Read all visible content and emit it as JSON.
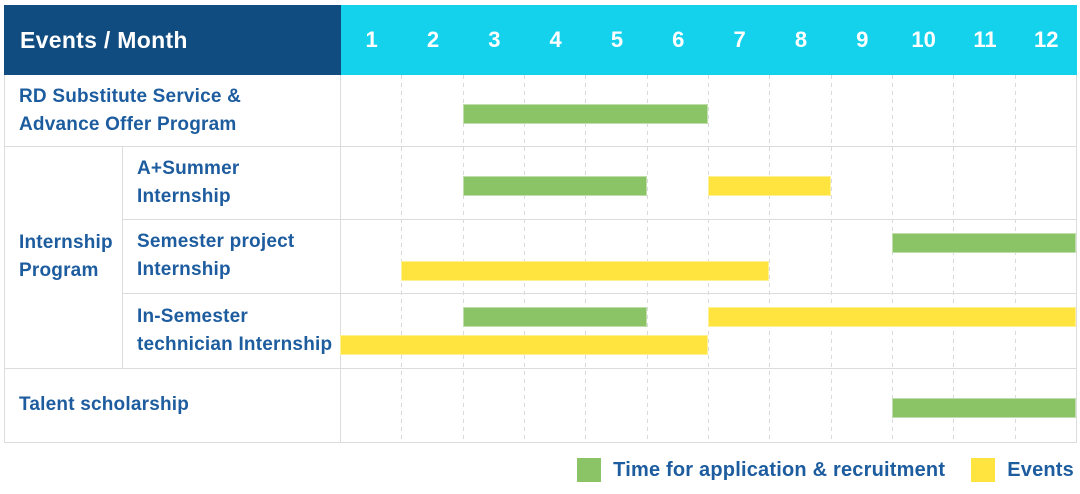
{
  "header": {
    "title": "Events / Month",
    "months": [
      "1",
      "2",
      "3",
      "4",
      "5",
      "6",
      "7",
      "8",
      "9",
      "10",
      "11",
      "12"
    ]
  },
  "chart_data": {
    "type": "gantt",
    "x_axis": {
      "unit": "month",
      "range": [
        1,
        12
      ],
      "ticks": [
        1,
        2,
        3,
        4,
        5,
        6,
        7,
        8,
        9,
        10,
        11,
        12
      ]
    },
    "group_label_lines": [
      "Internship",
      "Program"
    ],
    "rows": [
      {
        "group": "",
        "label_lines": [
          "RD Substitute Service &",
          "Advance Offer Program"
        ],
        "bars": [
          {
            "kind": "application",
            "start": 3,
            "end": 6,
            "line": 0
          }
        ]
      },
      {
        "group": "Internship Program",
        "label_lines": [
          "A+Summer",
          "Internship"
        ],
        "bars": [
          {
            "kind": "application",
            "start": 3,
            "end": 5,
            "line": 0
          },
          {
            "kind": "event",
            "start": 7,
            "end": 8,
            "line": 0
          }
        ]
      },
      {
        "group": "Internship Program",
        "label_lines": [
          "Semester project",
          "Internship"
        ],
        "bars": [
          {
            "kind": "application",
            "start": 10,
            "end": 12,
            "line": 0
          },
          {
            "kind": "event",
            "start": 2,
            "end": 7,
            "line": 1
          }
        ]
      },
      {
        "group": "Internship Program",
        "label_lines": [
          "In-Semester",
          "technician Internship"
        ],
        "bars": [
          {
            "kind": "application",
            "start": 3,
            "end": 5,
            "line": 0
          },
          {
            "kind": "event",
            "start": 7,
            "end": 12,
            "line": 0
          },
          {
            "kind": "event",
            "start": 1,
            "end": 6,
            "line": 1
          }
        ]
      },
      {
        "group": "",
        "label_lines": [
          "Talent scholarship"
        ],
        "bars": [
          {
            "kind": "application",
            "start": 10,
            "end": 12,
            "line": 0
          }
        ]
      }
    ],
    "legend": [
      {
        "kind": "application",
        "label": "Time for application & recruitment",
        "color": "#8ac467"
      },
      {
        "kind": "event",
        "label": "Events",
        "color": "#ffe33f"
      }
    ]
  },
  "colors": {
    "header_bg": "#114c80",
    "months_bg": "#15d2ec",
    "header_text": "#ffffff",
    "label_text": "#1d5c9e",
    "application_bar": "#8ac467",
    "event_bar": "#ffe33f",
    "grid_line": "#dcdcdc"
  }
}
